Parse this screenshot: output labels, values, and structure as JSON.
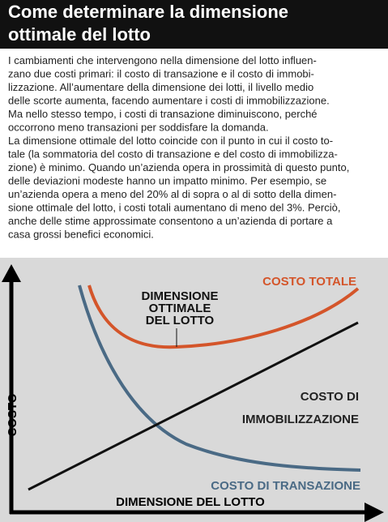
{
  "header": {
    "title": [
      "Come determinare la dimensione",
      "ottimale del lotto"
    ]
  },
  "body": {
    "lines": [
      "I cambiamenti che intervengono nella dimensione del lotto influen-",
      "zano due costi primari: il costo di transazione e il costo di immobi-",
      "lizzazione. All’aumentare della dimensione dei lotti, il livello medio",
      "delle scorte aumenta, facendo aumentare i costi di immobilizzazione.",
      "Ma nello stesso tempo, i costi di transazione diminuiscono, perché",
      "occorrono meno transazioni per soddisfare la domanda.",
      "La dimensione ottimale del lotto coincide con il punto in cui il costo to-",
      "tale (la sommatoria del costo di transazione e del costo di immobilizza-",
      "zione) è minimo. Quando un’azienda opera in prossimità di questo punto,",
      "delle deviazioni modeste hanno un impatto minimo. Per esempio, se",
      "un’azienda opera a meno del 20% al di sopra o al di sotto della dimen-",
      "sione ottimale del lotto, i costi totali aumentano di meno del 3%. Perciò,",
      "anche delle stime approssimate consentono a un’azienda di portare a",
      "casa grossi benefici economici."
    ]
  },
  "diagram": {
    "y_axis_label": "COSTO",
    "x_axis_label": "DIMENSIONE DEL LOTTO",
    "total_cost_label": "COSTO TOTALE",
    "optimum_label": [
      "DIMENSIONE",
      "OTTIMALE",
      "DEL LOTTO"
    ],
    "holding_cost_label": [
      "COSTO DI",
      "IMMOBILIZZAZIONE"
    ],
    "transaction_cost_label": "COSTO DI TRANSAZIONE"
  }
}
